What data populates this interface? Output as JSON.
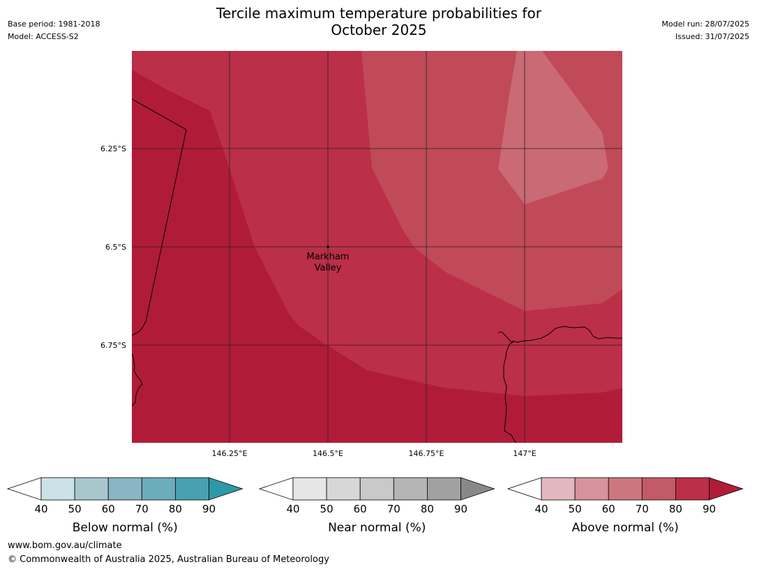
{
  "header": {
    "title_line1": "Tercile maximum temperature probabilities for",
    "title_line2": "October 2025",
    "base_period": "Base period: 1981-2018",
    "model": "Model: ACCESS-S2",
    "model_run": "Model run: 28/07/2025",
    "issued": "Issued: 31/07/2025"
  },
  "map": {
    "place_label_line1": "Markham",
    "place_label_line2": "Valley",
    "lat_labels": [
      "6.25°S",
      "6.5°S",
      "6.75°S"
    ],
    "lon_labels": [
      "146.25°E",
      "146.5°E",
      "146.75°E",
      "147°E"
    ],
    "fill_colors": {
      "p90": "#b01c38",
      "p80": "#bb2f48",
      "p70": "#c04a57",
      "p60": "#c96a74"
    }
  },
  "legends": [
    {
      "name": "Below normal (%)",
      "ticks": [
        "40",
        "50",
        "60",
        "70",
        "80",
        "90"
      ],
      "colors": [
        "#ffffff",
        "#cae2e7",
        "#a8c7cd",
        "#89b6c2",
        "#6badbb",
        "#47a1ae",
        "#2e98a6"
      ]
    },
    {
      "name": "Near normal (%)",
      "ticks": [
        "40",
        "50",
        "60",
        "70",
        "80",
        "90"
      ],
      "colors": [
        "#ffffff",
        "#e6e6e6",
        "#d7d7d7",
        "#c9c9c9",
        "#b5b5b5",
        "#a1a1a1",
        "#888888"
      ]
    },
    {
      "name": "Above normal (%)",
      "ticks": [
        "40",
        "50",
        "60",
        "70",
        "80",
        "90"
      ],
      "colors": [
        "#ffffff",
        "#e2b8be",
        "#d6939b",
        "#cc7680",
        "#c35a67",
        "#bb2f48",
        "#b01c38"
      ]
    }
  ],
  "footer": {
    "url": "www.bom.gov.au/climate",
    "copyright": "© Commonwealth of Australia 2025, Australian Bureau of Meteorology"
  }
}
